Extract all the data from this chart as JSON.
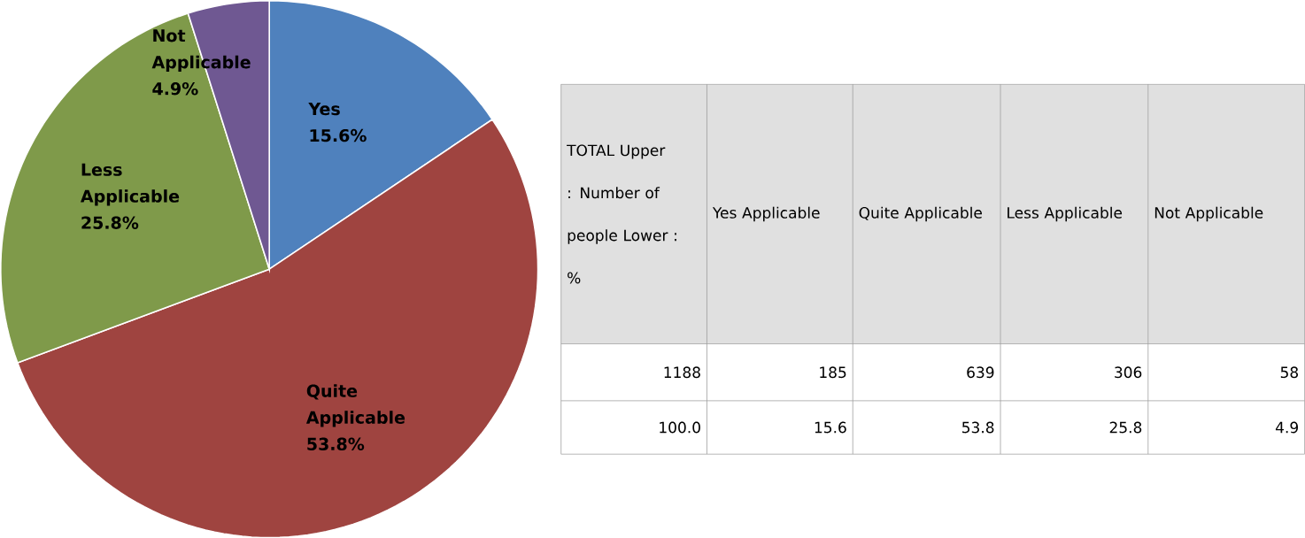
{
  "chart_data": {
    "type": "pie",
    "categories": [
      "Yes",
      "Quite Applicable",
      "Less Applicable",
      "Not Applicable"
    ],
    "values": [
      15.6,
      53.8,
      25.8,
      4.9
    ],
    "value_labels": [
      "15.6%",
      "53.8%",
      "25.8%",
      "4.9%"
    ],
    "colors": [
      "#4f81bd",
      "#9f4440",
      "#7f9a4a",
      "#6f5892"
    ],
    "annotations": [
      "TOTAL Upper : Number of people Lower : %",
      "Yes Applicable",
      "Quite Applicable",
      "Less Applicable",
      "Not Applicable",
      "1188",
      "185",
      "639",
      "306",
      "58",
      "100.0",
      "15.6",
      "53.8",
      "25.8",
      "4.9"
    ]
  }
}
